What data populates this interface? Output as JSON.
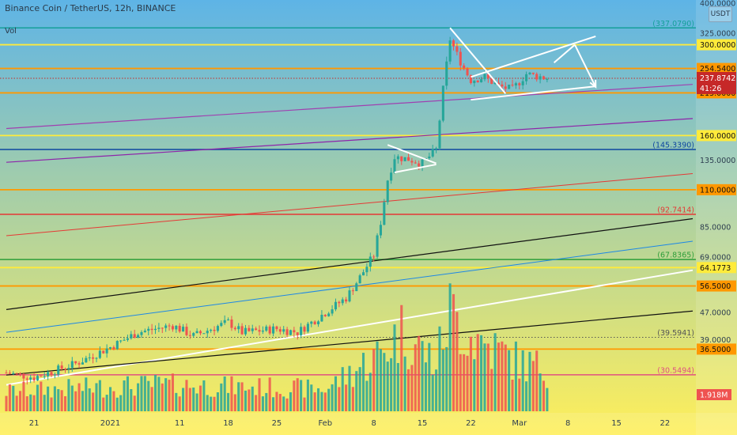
{
  "header": {
    "title": "Binance Coin / TetherUS, 12h, BINANCE",
    "volume_label": "Vol",
    "currency": "USDT"
  },
  "chart_data": {
    "type": "candlestick",
    "y_scale": "log",
    "ylim": [
      24,
      400
    ],
    "x_range_days": [
      "2020-12-17",
      "2021-03-26"
    ],
    "x_ticks": [
      {
        "label": "21",
        "date": "2020-12-21"
      },
      {
        "label": "2021",
        "date": "2021-01-01"
      },
      {
        "label": "11",
        "date": "2021-01-11"
      },
      {
        "label": "18",
        "date": "2021-01-18"
      },
      {
        "label": "25",
        "date": "2021-01-25"
      },
      {
        "label": "Feb",
        "date": "2021-02-01"
      },
      {
        "label": "8",
        "date": "2021-02-08"
      },
      {
        "label": "15",
        "date": "2021-02-15"
      },
      {
        "label": "22",
        "date": "2021-02-22"
      },
      {
        "label": "Mar",
        "date": "2021-03-01"
      },
      {
        "label": "8",
        "date": "2021-03-08"
      },
      {
        "label": "15",
        "date": "2021-03-15"
      },
      {
        "label": "22",
        "date": "2021-03-22"
      }
    ],
    "y_axis_labels": [
      "400.0000",
      "325.0000",
      "135.0000",
      "85.0000",
      "69.0000",
      "47.0000",
      "39.0000"
    ],
    "level_lines": [
      {
        "price": 337.079,
        "label": "(337.0790)",
        "color": "#159f9a",
        "style": "text"
      },
      {
        "price": 300,
        "label": "300.0000",
        "color": "#ffeb3b",
        "style": "badge"
      },
      {
        "price": 254.54,
        "label": "254.5400",
        "color": "#ff9800",
        "style": "badge"
      },
      {
        "price": 215,
        "label": "215.0000",
        "color": "#ff9800",
        "style": "badge"
      },
      {
        "price": 160,
        "label": "160.0000",
        "color": "#ffeb3b",
        "style": "badge"
      },
      {
        "price": 145.339,
        "label": "(145.3390)",
        "color": "#0d47a1",
        "style": "text"
      },
      {
        "price": 110,
        "label": "110.0000",
        "color": "#ff9800",
        "style": "badge"
      },
      {
        "price": 92.7414,
        "label": "(92.7414)",
        "color": "#e53935",
        "style": "text"
      },
      {
        "price": 67.8365,
        "label": "(67.8365)",
        "color": "#2e9e3a",
        "style": "text"
      },
      {
        "price": 64.1773,
        "label": "64.1773",
        "color": "#ffeb3b",
        "style": "badge"
      },
      {
        "price": 56.5,
        "label": "56.5000",
        "color": "#ff9800",
        "style": "badge"
      },
      {
        "price": 39.5941,
        "label": "(39.5941)",
        "color": "#555555",
        "style": "text-dotted"
      },
      {
        "price": 36.5,
        "label": "36.5000",
        "color": "#ff9800",
        "style": "badge"
      },
      {
        "price": 30.5494,
        "label": "(30.5494)",
        "color": "#e05080",
        "style": "text"
      }
    ],
    "current_price": {
      "value": 237.8742,
      "label": "237.8742",
      "countdown": "41:26",
      "color": "#c62828"
    },
    "volume_badge": {
      "label": "1.918M",
      "color": "#ef5350"
    },
    "trendlines": [
      {
        "from": {
          "date": "2020-12-17",
          "price": 28.5
        },
        "to": {
          "date": "2021-03-26",
          "price": 63
        },
        "color": "#ffffff",
        "width": 2
      },
      {
        "from": {
          "date": "2020-12-17",
          "price": 30.5
        },
        "to": {
          "date": "2021-03-26",
          "price": 47.5
        },
        "color": "#111111",
        "width": 1.2
      },
      {
        "from": {
          "date": "2020-12-17",
          "price": 41
        },
        "to": {
          "date": "2021-03-26",
          "price": 77
        },
        "color": "#1e88e5",
        "width": 1
      },
      {
        "from": {
          "date": "2020-12-17",
          "price": 48
        },
        "to": {
          "date": "2021-03-26",
          "price": 90
        },
        "color": "#111111",
        "width": 1.2
      },
      {
        "from": {
          "date": "2020-12-17",
          "price": 80
        },
        "to": {
          "date": "2021-03-26",
          "price": 123
        },
        "color": "#e53935",
        "width": 1
      },
      {
        "from": {
          "date": "2020-12-17",
          "price": 133
        },
        "to": {
          "date": "2021-03-26",
          "price": 180
        },
        "color": "#8e24aa",
        "width": 1.2
      },
      {
        "from": {
          "date": "2020-12-17",
          "price": 168
        },
        "to": {
          "date": "2021-03-26",
          "price": 228
        },
        "color": "#a040b0",
        "width": 1.2
      }
    ],
    "pattern_lines": [
      {
        "from": {
          "date": "2021-02-10",
          "price": 150
        },
        "to": {
          "date": "2021-02-17",
          "price": 132
        },
        "color": "#ffffff"
      },
      {
        "from": {
          "date": "2021-02-11",
          "price": 124
        },
        "to": {
          "date": "2021-02-17",
          "price": 131
        },
        "color": "#ffffff"
      },
      {
        "from": {
          "date": "2021-02-19",
          "price": 337
        },
        "to": {
          "date": "2021-02-27",
          "price": 214
        },
        "color": "#ffffff"
      },
      {
        "from": {
          "date": "2021-02-22",
          "price": 205
        },
        "to": {
          "date": "2021-03-12",
          "price": 225
        },
        "color": "#ffffff"
      },
      {
        "from": {
          "date": "2021-02-22",
          "price": 240
        },
        "to": {
          "date": "2021-03-12",
          "price": 318
        },
        "color": "#ffffff"
      },
      {
        "from": {
          "date": "2021-03-06",
          "price": 265
        },
        "to": {
          "date": "2021-03-09",
          "price": 300
        },
        "color": "#ffffff"
      },
      {
        "from": {
          "date": "2021-03-09",
          "price": 300
        },
        "to": {
          "date": "2021-03-12",
          "price": 224
        },
        "color": "#ffffff",
        "arrow": true
      }
    ],
    "ohlc_anchor_closes": [
      {
        "date": "2020-12-17",
        "close": 31
      },
      {
        "date": "2020-12-21",
        "close": 30
      },
      {
        "date": "2020-12-27",
        "close": 33
      },
      {
        "date": "2021-01-01",
        "close": 37
      },
      {
        "date": "2021-01-05",
        "close": 41
      },
      {
        "date": "2021-01-10",
        "close": 43
      },
      {
        "date": "2021-01-13",
        "close": 40
      },
      {
        "date": "2021-01-18",
        "close": 44
      },
      {
        "date": "2021-01-20",
        "close": 41
      },
      {
        "date": "2021-01-25",
        "close": 42
      },
      {
        "date": "2021-01-28",
        "close": 41
      },
      {
        "date": "2021-02-01",
        "close": 47
      },
      {
        "date": "2021-02-04",
        "close": 52
      },
      {
        "date": "2021-02-06",
        "close": 60
      },
      {
        "date": "2021-02-08",
        "close": 70
      },
      {
        "date": "2021-02-09",
        "close": 88
      },
      {
        "date": "2021-02-10",
        "close": 118
      },
      {
        "date": "2021-02-11",
        "close": 138
      },
      {
        "date": "2021-02-13",
        "close": 136
      },
      {
        "date": "2021-02-15",
        "close": 132
      },
      {
        "date": "2021-02-17",
        "close": 145
      },
      {
        "date": "2021-02-18",
        "close": 220
      },
      {
        "date": "2021-02-19",
        "close": 312
      },
      {
        "date": "2021-02-20",
        "close": 280
      },
      {
        "date": "2021-02-21",
        "close": 255
      },
      {
        "date": "2021-02-22",
        "close": 235
      },
      {
        "date": "2021-02-24",
        "close": 240
      },
      {
        "date": "2021-02-26",
        "close": 225
      },
      {
        "date": "2021-02-28",
        "close": 220
      },
      {
        "date": "2021-03-02",
        "close": 245
      },
      {
        "date": "2021-03-05",
        "close": 238
      }
    ],
    "volume_anchors_millions": [
      {
        "date": "2020-12-17",
        "volume": 0.9
      },
      {
        "date": "2021-01-08",
        "volume": 1.2
      },
      {
        "date": "2021-02-01",
        "volume": 1.0
      },
      {
        "date": "2021-02-09",
        "volume": 2.6
      },
      {
        "date": "2021-02-12",
        "volume": 3.6
      },
      {
        "date": "2021-02-17",
        "volume": 2.2
      },
      {
        "date": "2021-02-19",
        "volume": 4.5
      },
      {
        "date": "2021-02-22",
        "volume": 3.4
      },
      {
        "date": "2021-03-01",
        "volume": 2.2
      },
      {
        "date": "2021-03-05",
        "volume": 1.9
      }
    ]
  },
  "colors": {
    "up": "#26a69a",
    "down": "#ef5350",
    "bg_top": "#5eb4e6",
    "bg_bottom": "#ffef5a"
  }
}
